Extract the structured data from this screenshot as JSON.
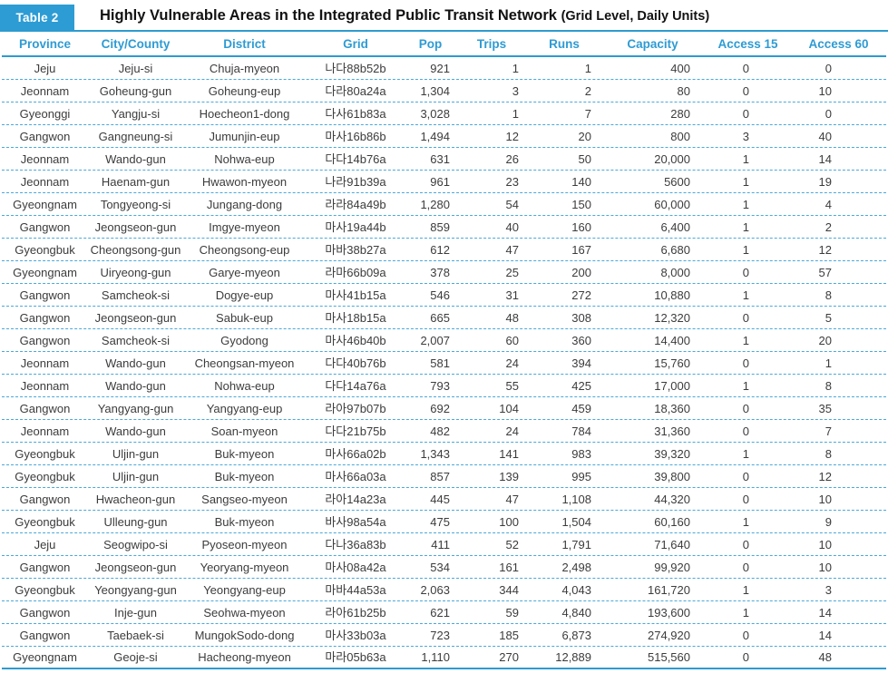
{
  "colors": {
    "accent_blue": "#2d9cd4",
    "rule_blue": "#2d9bce",
    "dashed_separator_blue": "#4aa9da",
    "header_text_blue": "#2e9bd3",
    "body_text": "#3c3c3c"
  },
  "header": {
    "badge": "Table 2",
    "title": "Highly Vulnerable Areas in the Integrated Public Transit Network",
    "title_note": "(Grid Level, Daily Units)"
  },
  "table": {
    "columns": [
      "Province",
      "City/County",
      "District",
      "Grid",
      "Pop",
      "Trips",
      "Runs",
      "Capacity",
      "Access 15",
      "Access 60"
    ],
    "rows": [
      [
        "Jeju",
        "Jeju-si",
        "Chuja-myeon",
        "나다88b52b",
        "921",
        "1",
        "1",
        "400",
        "0",
        "0"
      ],
      [
        "Jeonnam",
        "Goheung-gun",
        "Goheung-eup",
        "다라80a24a",
        "1,304",
        "3",
        "2",
        "80",
        "0",
        "10"
      ],
      [
        "Gyeonggi",
        "Yangju-si",
        "Hoecheon1-dong",
        "다사61b83a",
        "3,028",
        "1",
        "7",
        "280",
        "0",
        "0"
      ],
      [
        "Gangwon",
        "Gangneung-si",
        "Jumunjin-eup",
        "마사16b86b",
        "1,494",
        "12",
        "20",
        "800",
        "3",
        "40"
      ],
      [
        "Jeonnam",
        "Wando-gun",
        "Nohwa-eup",
        "다다14b76a",
        "631",
        "26",
        "50",
        "20,000",
        "1",
        "14"
      ],
      [
        "Jeonnam",
        "Haenam-gun",
        "Hwawon-myeon",
        "나라91b39a",
        "961",
        "23",
        "140",
        "5600",
        "1",
        "19"
      ],
      [
        "Gyeongnam",
        "Tongyeong-si",
        "Jungang-dong",
        "라라84a49b",
        "1,280",
        "54",
        "150",
        "60,000",
        "1",
        "4"
      ],
      [
        "Gangwon",
        "Jeongseon-gun",
        "Imgye-myeon",
        "마사19a44b",
        "859",
        "40",
        "160",
        "6,400",
        "1",
        "2"
      ],
      [
        "Gyeongbuk",
        "Cheongsong-gun",
        "Cheongsong-eup",
        "마바38b27a",
        "612",
        "47",
        "167",
        "6,680",
        "1",
        "12"
      ],
      [
        "Gyeongnam",
        "Uiryeong-gun",
        "Garye-myeon",
        "라마66b09a",
        "378",
        "25",
        "200",
        "8,000",
        "0",
        "57"
      ],
      [
        "Gangwon",
        "Samcheok-si",
        "Dogye-eup",
        "마사41b15a",
        "546",
        "31",
        "272",
        "10,880",
        "1",
        "8"
      ],
      [
        "Gangwon",
        "Jeongseon-gun",
        "Sabuk-eup",
        "마사18b15a",
        "665",
        "48",
        "308",
        "12,320",
        "0",
        "5"
      ],
      [
        "Gangwon",
        "Samcheok-si",
        "Gyodong",
        "마사46b40b",
        "2,007",
        "60",
        "360",
        "14,400",
        "1",
        "20"
      ],
      [
        "Jeonnam",
        "Wando-gun",
        "Cheongsan-myeon",
        "다다40b76b",
        "581",
        "24",
        "394",
        "15,760",
        "0",
        "1"
      ],
      [
        "Jeonnam",
        "Wando-gun",
        "Nohwa-eup",
        "다다14a76a",
        "793",
        "55",
        "425",
        "17,000",
        "1",
        "8"
      ],
      [
        "Gangwon",
        "Yangyang-gun",
        "Yangyang-eup",
        "라아97b07b",
        "692",
        "104",
        "459",
        "18,360",
        "0",
        "35"
      ],
      [
        "Jeonnam",
        "Wando-gun",
        "Soan-myeon",
        "다다21b75b",
        "482",
        "24",
        "784",
        "31,360",
        "0",
        "7"
      ],
      [
        "Gyeongbuk",
        "Uljin-gun",
        "Buk-myeon",
        "마사66a02b",
        "1,343",
        "141",
        "983",
        "39,320",
        "1",
        "8"
      ],
      [
        "Gyeongbuk",
        "Uljin-gun",
        "Buk-myeon",
        "마사66a03a",
        "857",
        "139",
        "995",
        "39,800",
        "0",
        "12"
      ],
      [
        "Gangwon",
        "Hwacheon-gun",
        "Sangseo-myeon",
        "라아14a23a",
        "445",
        "47",
        "1,108",
        "44,320",
        "0",
        "10"
      ],
      [
        "Gyeongbuk",
        "Ulleung-gun",
        "Buk-myeon",
        "바사98a54a",
        "475",
        "100",
        "1,504",
        "60,160",
        "1",
        "9"
      ],
      [
        "Jeju",
        "Seogwipo-si",
        "Pyoseon-myeon",
        "다나36a83b",
        "411",
        "52",
        "1,791",
        "71,640",
        "0",
        "10"
      ],
      [
        "Gangwon",
        "Jeongseon-gun",
        "Yeoryang-myeon",
        "마사08a42a",
        "534",
        "161",
        "2,498",
        "99,920",
        "0",
        "10"
      ],
      [
        "Gyeongbuk",
        "Yeongyang-gun",
        "Yeongyang-eup",
        "마바44a53a",
        "2,063",
        "344",
        "4,043",
        "161,720",
        "1",
        "3"
      ],
      [
        "Gangwon",
        "Inje-gun",
        "Seohwa-myeon",
        "라아61b25b",
        "621",
        "59",
        "4,840",
        "193,600",
        "1",
        "14"
      ],
      [
        "Gangwon",
        "Taebaek-si",
        "MungokSodo-dong",
        "마사33b03a",
        "723",
        "185",
        "6,873",
        "274,920",
        "0",
        "14"
      ],
      [
        "Gyeongnam",
        "Geoje-si",
        "Hacheong-myeon",
        "마라05b63a",
        "1,110",
        "270",
        "12,889",
        "515,560",
        "0",
        "48"
      ]
    ]
  }
}
